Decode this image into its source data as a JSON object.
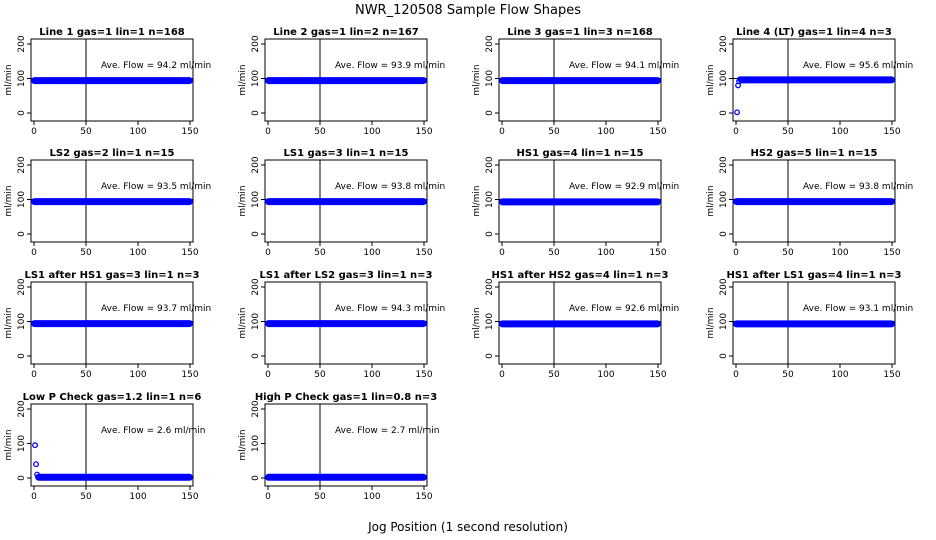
{
  "title": "NWR_120508  Sample Flow Shapes",
  "xlabel": "Jog Position (1 second resolution)",
  "ylabel": "ml/min",
  "chart_data": [
    {
      "type": "scatter",
      "title": "Line 1 gas=1 lin=1 n=168",
      "annotation": "Ave. Flow = 94.2  ml/min",
      "xlim": [
        0,
        150
      ],
      "ylim": [
        0,
        200
      ],
      "xticks": [
        0,
        50,
        100,
        150
      ],
      "yticks": [
        0,
        100,
        200
      ],
      "vline": 50,
      "hline": 100,
      "series": [
        {
          "x": [
            0,
            150
          ],
          "y": [
            94,
            94
          ],
          "style": "band"
        }
      ]
    },
    {
      "type": "scatter",
      "title": "Line 2 gas=1 lin=2 n=167",
      "annotation": "Ave. Flow = 93.9  ml/min",
      "xlim": [
        0,
        150
      ],
      "ylim": [
        0,
        200
      ],
      "xticks": [
        0,
        50,
        100,
        150
      ],
      "yticks": [
        0,
        100,
        200
      ],
      "vline": 50,
      "hline": 100,
      "series": [
        {
          "x": [
            0,
            150
          ],
          "y": [
            94,
            94
          ],
          "style": "band"
        }
      ]
    },
    {
      "type": "scatter",
      "title": "Line 3 gas=1 lin=3 n=168",
      "annotation": "Ave. Flow = 94.1  ml/min",
      "xlim": [
        0,
        150
      ],
      "ylim": [
        0,
        200
      ],
      "xticks": [
        0,
        50,
        100,
        150
      ],
      "yticks": [
        0,
        100,
        200
      ],
      "vline": 50,
      "hline": 100,
      "series": [
        {
          "x": [
            0,
            150
          ],
          "y": [
            94,
            94
          ],
          "style": "band"
        }
      ]
    },
    {
      "type": "scatter",
      "title": "Line 4 (LT) gas=1 lin=4 n=3",
      "annotation": "Ave. Flow = 95.6  ml/min",
      "xlim": [
        0,
        150
      ],
      "ylim": [
        0,
        200
      ],
      "xticks": [
        0,
        50,
        100,
        150
      ],
      "yticks": [
        0,
        100,
        200
      ],
      "vline": 50,
      "hline": 100,
      "series": [
        {
          "x": [
            5,
            150
          ],
          "y": [
            96,
            96
          ],
          "style": "band"
        },
        {
          "x": [
            1,
            2,
            3,
            4
          ],
          "y": [
            2,
            80,
            92,
            98
          ],
          "style": "points"
        }
      ]
    },
    {
      "type": "scatter",
      "title": "LS2 gas=2 lin=1 n=15",
      "annotation": "Ave. Flow = 93.5  ml/min",
      "xlim": [
        0,
        150
      ],
      "ylim": [
        0,
        200
      ],
      "xticks": [
        0,
        50,
        100,
        150
      ],
      "yticks": [
        0,
        100,
        200
      ],
      "vline": 50,
      "hline": 100,
      "series": [
        {
          "x": [
            0,
            150
          ],
          "y": [
            94,
            94
          ],
          "style": "band"
        }
      ]
    },
    {
      "type": "scatter",
      "title": "LS1 gas=3 lin=1 n=15",
      "annotation": "Ave. Flow = 93.8  ml/min",
      "xlim": [
        0,
        150
      ],
      "ylim": [
        0,
        200
      ],
      "xticks": [
        0,
        50,
        100,
        150
      ],
      "yticks": [
        0,
        100,
        200
      ],
      "vline": 50,
      "hline": 100,
      "series": [
        {
          "x": [
            0,
            150
          ],
          "y": [
            94,
            94
          ],
          "style": "band"
        }
      ]
    },
    {
      "type": "scatter",
      "title": "HS1 gas=4 lin=1 n=15",
      "annotation": "Ave. Flow = 92.9  ml/min",
      "xlim": [
        0,
        150
      ],
      "ylim": [
        0,
        200
      ],
      "xticks": [
        0,
        50,
        100,
        150
      ],
      "yticks": [
        0,
        100,
        200
      ],
      "vline": 50,
      "hline": 100,
      "series": [
        {
          "x": [
            0,
            150
          ],
          "y": [
            93,
            93
          ],
          "style": "band"
        }
      ]
    },
    {
      "type": "scatter",
      "title": "HS2 gas=5 lin=1 n=15",
      "annotation": "Ave. Flow = 93.8  ml/min",
      "xlim": [
        0,
        150
      ],
      "ylim": [
        0,
        200
      ],
      "xticks": [
        0,
        50,
        100,
        150
      ],
      "yticks": [
        0,
        100,
        200
      ],
      "vline": 50,
      "hline": 100,
      "series": [
        {
          "x": [
            0,
            150
          ],
          "y": [
            94,
            94
          ],
          "style": "band"
        }
      ]
    },
    {
      "type": "scatter",
      "title": "LS1 after HS1 gas=3 lin=1 n=3",
      "annotation": "Ave. Flow = 93.7  ml/min",
      "xlim": [
        0,
        150
      ],
      "ylim": [
        0,
        200
      ],
      "xticks": [
        0,
        50,
        100,
        150
      ],
      "yticks": [
        0,
        100,
        200
      ],
      "vline": 50,
      "hline": 100,
      "series": [
        {
          "x": [
            0,
            150
          ],
          "y": [
            94,
            94
          ],
          "style": "band"
        }
      ]
    },
    {
      "type": "scatter",
      "title": "LS1 after LS2 gas=3 lin=1 n=3",
      "annotation": "Ave. Flow = 94.3  ml/min",
      "xlim": [
        0,
        150
      ],
      "ylim": [
        0,
        200
      ],
      "xticks": [
        0,
        50,
        100,
        150
      ],
      "yticks": [
        0,
        100,
        200
      ],
      "vline": 50,
      "hline": 100,
      "series": [
        {
          "x": [
            0,
            150
          ],
          "y": [
            94,
            94
          ],
          "style": "band"
        }
      ]
    },
    {
      "type": "scatter",
      "title": "HS1 after HS2 gas=4 lin=1 n=3",
      "annotation": "Ave. Flow = 92.6  ml/min",
      "xlim": [
        0,
        150
      ],
      "ylim": [
        0,
        200
      ],
      "xticks": [
        0,
        50,
        100,
        150
      ],
      "yticks": [
        0,
        100,
        200
      ],
      "vline": 50,
      "hline": 100,
      "series": [
        {
          "x": [
            0,
            150
          ],
          "y": [
            93,
            93
          ],
          "style": "band"
        }
      ]
    },
    {
      "type": "scatter",
      "title": "HS1 after LS1 gas=4 lin=1 n=3",
      "annotation": "Ave. Flow = 93.1  ml/min",
      "xlim": [
        0,
        150
      ],
      "ylim": [
        0,
        200
      ],
      "xticks": [
        0,
        50,
        100,
        150
      ],
      "yticks": [
        0,
        100,
        200
      ],
      "vline": 50,
      "hline": 100,
      "series": [
        {
          "x": [
            0,
            150
          ],
          "y": [
            93,
            93
          ],
          "style": "band"
        }
      ]
    },
    {
      "type": "scatter",
      "title": "Low P Check gas=1.2 lin=1 n=6",
      "annotation": "Ave. Flow = 2.6  ml/min",
      "xlim": [
        0,
        150
      ],
      "ylim": [
        0,
        200
      ],
      "xticks": [
        0,
        50,
        100,
        150
      ],
      "yticks": [
        0,
        100,
        200
      ],
      "vline": 50,
      "hline": null,
      "series": [
        {
          "x": [
            4,
            150
          ],
          "y": [
            2,
            2
          ],
          "style": "band"
        },
        {
          "x": [
            1,
            2,
            3
          ],
          "y": [
            95,
            40,
            10
          ],
          "style": "points"
        }
      ]
    },
    {
      "type": "scatter",
      "title": "High P Check gas=1 lin=0.8 n=3",
      "annotation": "Ave. Flow = 2.7  ml/min",
      "xlim": [
        0,
        150
      ],
      "ylim": [
        0,
        200
      ],
      "xticks": [
        0,
        50,
        100,
        150
      ],
      "yticks": [
        0,
        100,
        200
      ],
      "vline": 50,
      "hline": null,
      "series": [
        {
          "x": [
            0,
            150
          ],
          "y": [
            2,
            2
          ],
          "style": "band"
        }
      ]
    }
  ],
  "colors": {
    "points": "#0000ff",
    "axes": "#000000",
    "background": "#ffffff"
  }
}
